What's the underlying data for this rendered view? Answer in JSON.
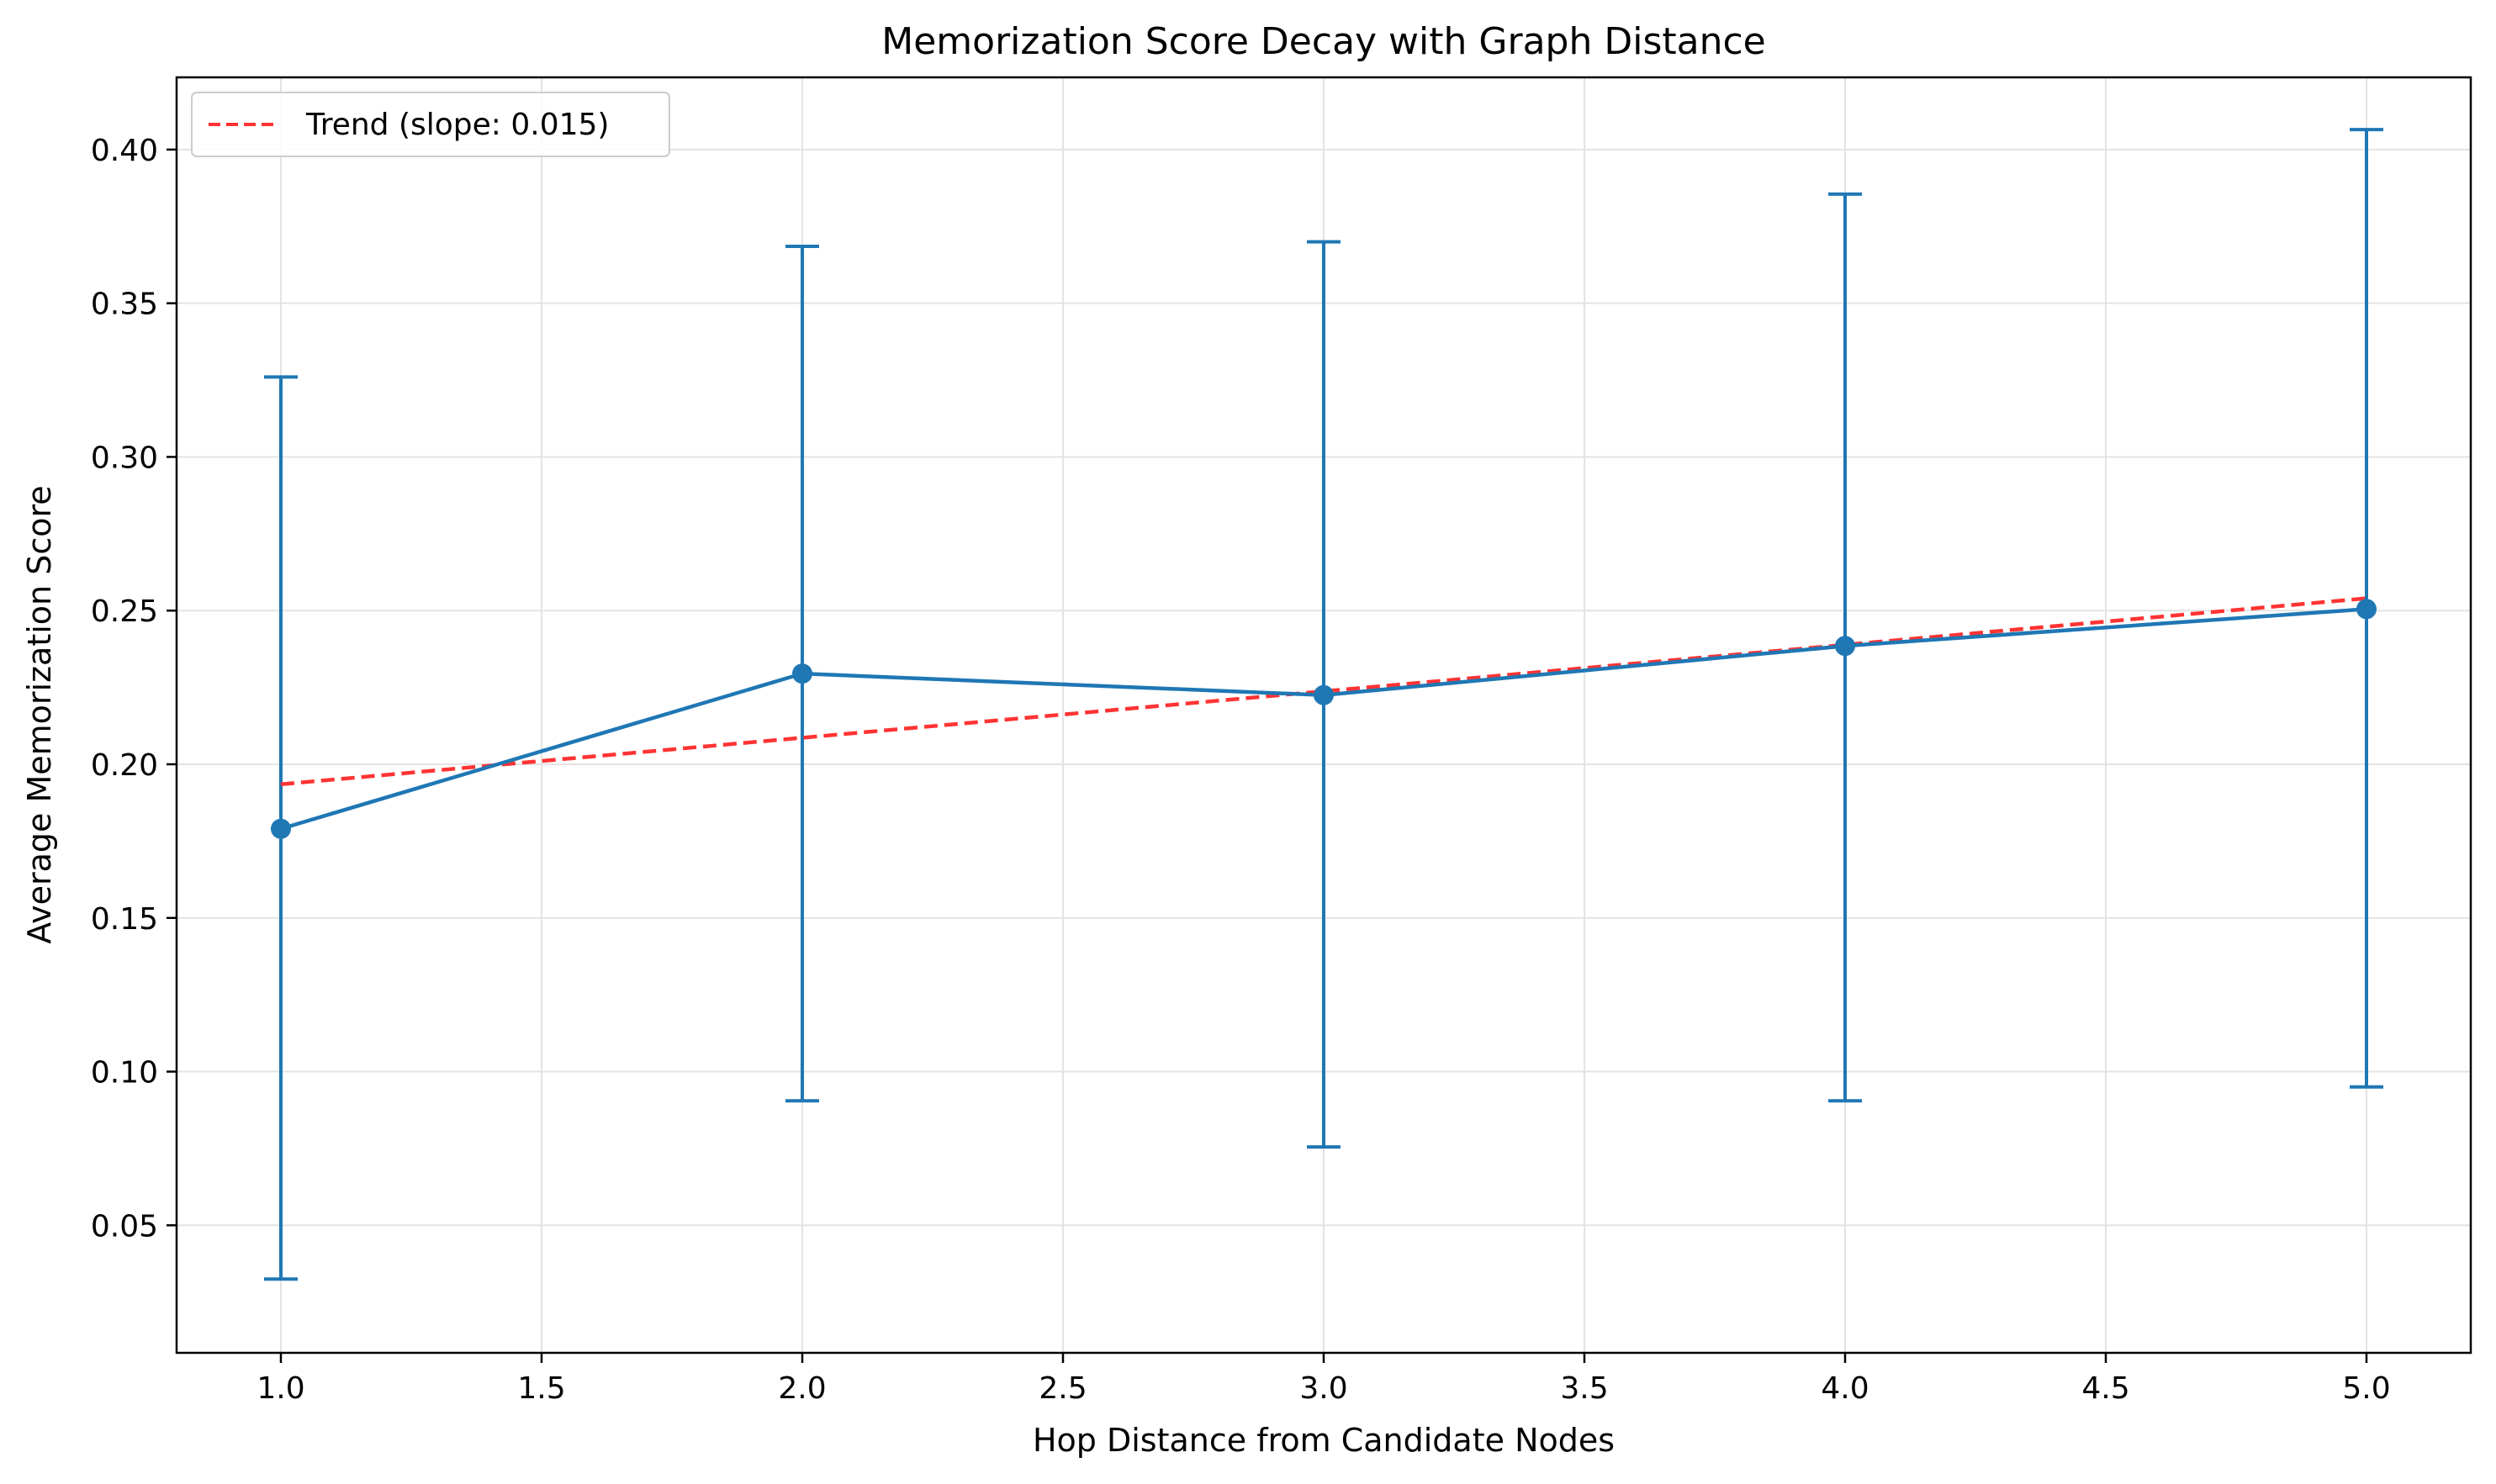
{
  "chart_data": {
    "type": "line",
    "title": "Memorization Score Decay with Graph Distance",
    "xlabel": "Hop Distance from Candidate Nodes",
    "ylabel": "Average Memorization Score",
    "xlim": [
      0.8,
      5.2
    ],
    "ylim": [
      0.0085,
      0.4235
    ],
    "xticks": [
      "1.0",
      "1.5",
      "2.0",
      "2.5",
      "3.0",
      "3.5",
      "4.0",
      "4.5",
      "5.0"
    ],
    "yticks": [
      "0.05",
      "0.10",
      "0.15",
      "0.20",
      "0.25",
      "0.30",
      "0.35",
      "0.40"
    ],
    "grid": true,
    "legend_position": "top-left",
    "series": [
      {
        "x": [
          1,
          2,
          3,
          4,
          5
        ],
        "values": [
          0.179,
          0.2295,
          0.2225,
          0.2385,
          0.2505
        ],
        "error_low": [
          0.0325,
          0.0905,
          0.0755,
          0.0905,
          0.095
        ],
        "error_high": [
          0.326,
          0.3685,
          0.37,
          0.3855,
          0.4065
        ],
        "color": "#1f77b4"
      },
      {
        "name": "Trend (slope: 0.015)",
        "x": [
          1,
          5
        ],
        "values": [
          0.1935,
          0.254
        ],
        "style": "dashed",
        "color": "#ff3333"
      }
    ]
  }
}
